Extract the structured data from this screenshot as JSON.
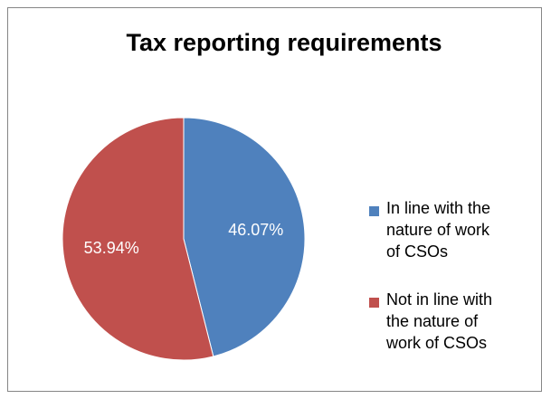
{
  "chart_data": {
    "type": "pie",
    "title": "Tax reporting requirements",
    "categories": [
      "In line with the nature of work of CSOs",
      "Not in line with the nature of work of CSOs"
    ],
    "values": [
      46.07,
      53.94
    ],
    "value_labels": [
      "46.07%",
      "53.94%"
    ],
    "colors": [
      "#4F81BD",
      "#C0504D"
    ],
    "legend_position": "right",
    "legend_lines": [
      "In line with the\nnature of work\nof CSOs",
      "Not in line with\nthe nature of\nwork of CSOs"
    ]
  }
}
